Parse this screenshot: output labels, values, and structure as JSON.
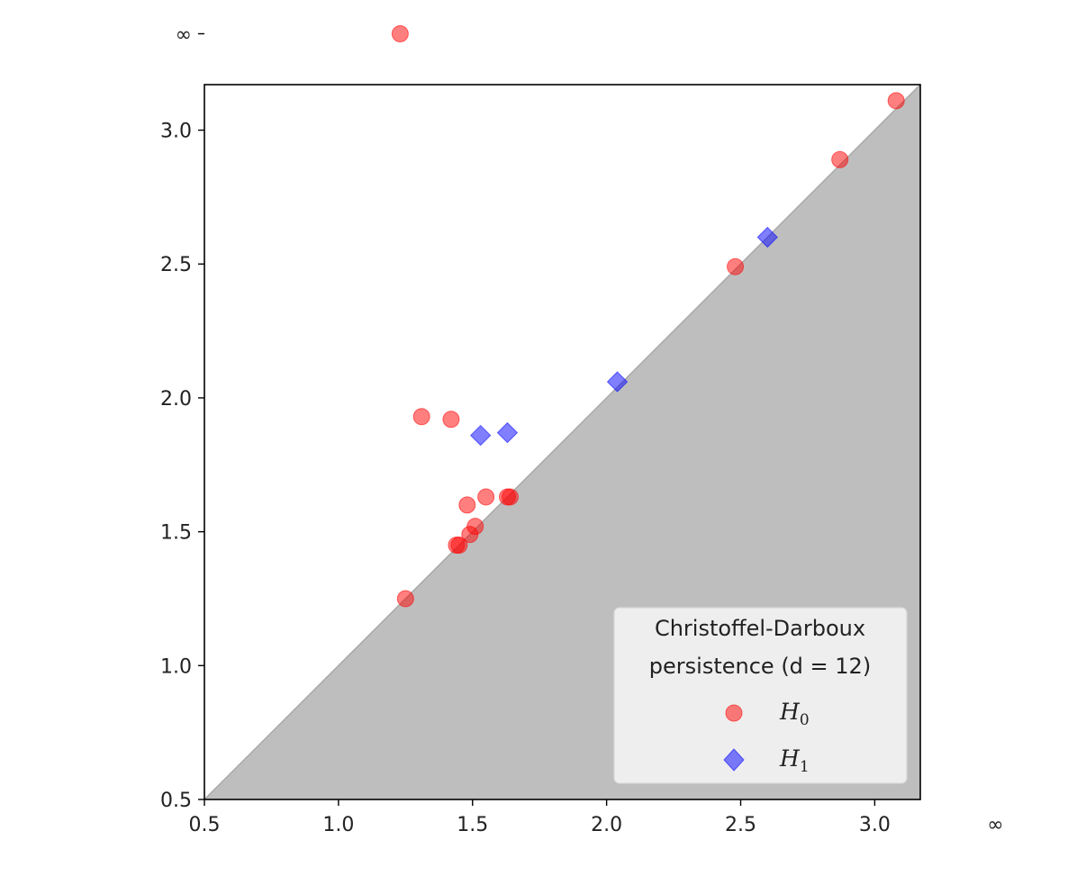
{
  "chart_data": {
    "type": "scatter",
    "title": "",
    "xlabel": "",
    "ylabel": "",
    "xlim": [
      0.5,
      3.17
    ],
    "ylim": [
      0.5,
      3.17
    ],
    "grid": false,
    "infinity_value": 3.02,
    "x_ticks": [
      {
        "value": 0.5,
        "label": "0.5"
      },
      {
        "value": 1.0,
        "label": "1.0"
      },
      {
        "value": 1.5,
        "label": "1.5"
      },
      {
        "value": 2.0,
        "label": "2.0"
      },
      {
        "value": 2.5,
        "label": "2.5"
      },
      {
        "value": 3.0,
        "label": "3.0"
      },
      {
        "value": 3.45,
        "label": "∞"
      }
    ],
    "y_ticks": [
      {
        "value": 0.5,
        "label": "0.5"
      },
      {
        "value": 1.0,
        "label": "1.0"
      },
      {
        "value": 1.5,
        "label": "1.5"
      },
      {
        "value": 2.0,
        "label": "2.0"
      },
      {
        "value": 2.5,
        "label": "2.5"
      },
      {
        "value": 3.0,
        "label": "3.0"
      },
      {
        "value": 3.36,
        "label": "∞"
      }
    ],
    "legend": {
      "title_line1": "Christoffel-Darboux",
      "title_line2": "persistence (d = 12)",
      "placement": "lower-right"
    },
    "series": [
      {
        "name_base": "H",
        "name_sub": "0",
        "marker": "circle",
        "color": "#ff0000",
        "points": [
          {
            "x": 1.23,
            "y": 3.36
          },
          {
            "x": 1.25,
            "y": 1.25
          },
          {
            "x": 1.31,
            "y": 1.93
          },
          {
            "x": 1.42,
            "y": 1.92
          },
          {
            "x": 1.44,
            "y": 1.45
          },
          {
            "x": 1.45,
            "y": 1.45
          },
          {
            "x": 1.48,
            "y": 1.6
          },
          {
            "x": 1.49,
            "y": 1.49
          },
          {
            "x": 1.51,
            "y": 1.52
          },
          {
            "x": 1.55,
            "y": 1.63
          },
          {
            "x": 1.63,
            "y": 1.63
          },
          {
            "x": 1.64,
            "y": 1.63
          },
          {
            "x": 2.48,
            "y": 2.49
          },
          {
            "x": 2.87,
            "y": 2.89
          },
          {
            "x": 3.08,
            "y": 3.11
          }
        ]
      },
      {
        "name_base": "H",
        "name_sub": "1",
        "marker": "diamond",
        "color": "#0000ff",
        "points": [
          {
            "x": 1.53,
            "y": 1.86
          },
          {
            "x": 1.63,
            "y": 1.87
          },
          {
            "x": 2.04,
            "y": 2.06
          },
          {
            "x": 2.6,
            "y": 2.6
          }
        ]
      }
    ]
  }
}
